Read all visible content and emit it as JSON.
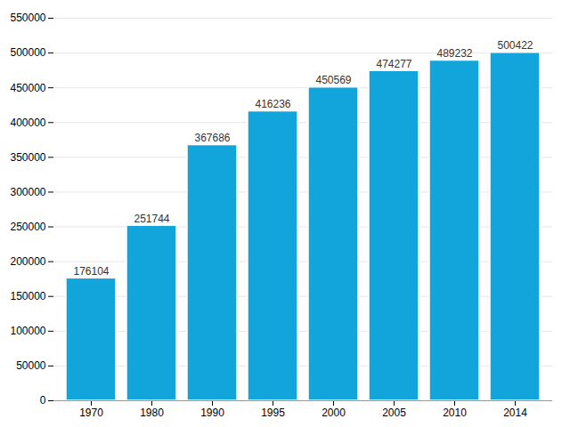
{
  "chart_data": {
    "type": "bar",
    "categories": [
      "1970",
      "1980",
      "1990",
      "1995",
      "2000",
      "2005",
      "2010",
      "2014"
    ],
    "values": [
      176104,
      251744,
      367686,
      416236,
      450569,
      474277,
      489232,
      500422
    ],
    "color": "#12A5DC",
    "ylim": [
      0,
      550000
    ],
    "yticks": [
      0,
      50000,
      100000,
      150000,
      200000,
      250000,
      300000,
      350000,
      400000,
      450000,
      500000,
      550000
    ],
    "grid": true,
    "data_labels": true
  }
}
